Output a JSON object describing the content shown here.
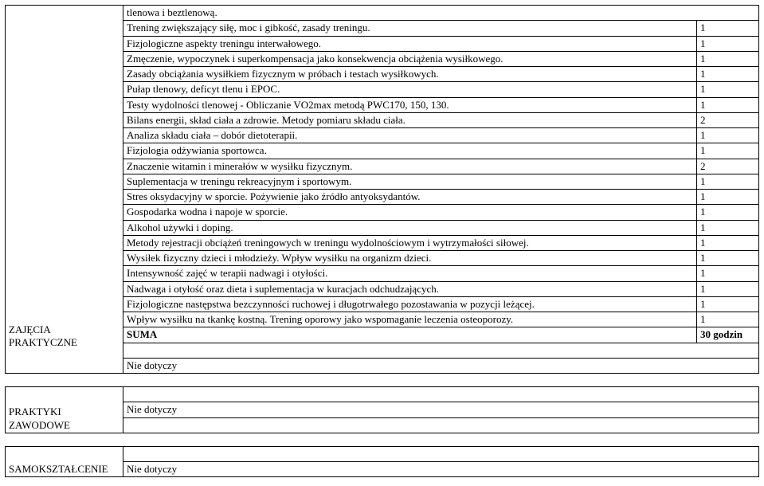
{
  "section1": {
    "label": "ZAJĘCIA PRAKTYCZNE",
    "rows": [
      {
        "desc": "tlenowa i beztlenową.",
        "val": null
      },
      {
        "desc": "Trening zwiększający siłę, moc i gibkość, zasady treningu.",
        "val": "1"
      },
      {
        "desc": "Fizjologiczne aspekty treningu interwałowego.",
        "val": "1"
      },
      {
        "desc": "Zmęczenie, wypoczynek i superkompensacja jako konsekwencja obciążenia wysiłkowego.",
        "val": "1"
      },
      {
        "desc": "Zasady obciążania wysiłkiem fizycznym w próbach i testach wysiłkowych.",
        "val": "1"
      },
      {
        "desc": "Pułap tlenowy, deficyt tlenu i EPOC.",
        "val": "1"
      },
      {
        "desc": "Testy wydolności tlenowej - Obliczanie VO2max metodą PWC170, 150, 130.",
        "val": "1"
      },
      {
        "desc": "Bilans energii, skład ciała a zdrowie. Metody pomiaru składu ciała.",
        "val": "2"
      },
      {
        "desc": "Analiza składu ciała – dobór dietoterapii.",
        "val": "1"
      },
      {
        "desc": "Fizjologia odżywiania sportowca.",
        "val": "1"
      },
      {
        "desc": "Znaczenie witamin i minerałów w wysiłku fizycznym.",
        "val": "2"
      },
      {
        "desc": "Suplementacja w treningu rekreacyjnym i sportowym.",
        "val": "1"
      },
      {
        "desc": "Stres oksydacyjny w sporcie. Pożywienie jako źródło antyoksydantów.",
        "val": "1"
      },
      {
        "desc": "Gospodarka wodna i napoje w sporcie.",
        "val": "1"
      },
      {
        "desc": "Alkohol używki i doping.",
        "val": "1"
      },
      {
        "desc": "Metody rejestracji obciążeń treningowych  w treningu wydolnościowym i wytrzymałości siłowej.",
        "val": "1"
      },
      {
        "desc": "Wysiłek fizyczny dzieci i młodzieży. Wpływ wysiłku na organizm dzieci.",
        "val": "1"
      },
      {
        "desc": "Intensywność zajęć w terapii nadwagi i otyłości.",
        "val": "1"
      },
      {
        "desc": "Nadwaga i otyłość oraz dieta i suplementacja w kuracjach odchudzających.",
        "val": "1"
      },
      {
        "desc": "Fizjologiczne następstwa bezczynności ruchowej i długotrwałego pozostawania w pozycji leżącej.",
        "val": "1"
      },
      {
        "desc": "Wpływ wysiłku na tkankę kostną. Trening oporowy jako wspomaganie leczenia osteoporozy.",
        "val": "1"
      }
    ],
    "sum_label": "SUMA",
    "sum_val": "30 godzin",
    "nd": "Nie dotyczy"
  },
  "section2": {
    "label": "PRAKTYKI ZAWODOWE",
    "nd": "Nie dotyczy"
  },
  "section3": {
    "label": "SAMOKSZTAŁCENIE",
    "nd": "Nie dotyczy"
  },
  "colors": {
    "text": "#000000",
    "border": "#000000",
    "bg": "#ffffff"
  },
  "font": {
    "family": "Times New Roman",
    "size_pt": 10
  }
}
